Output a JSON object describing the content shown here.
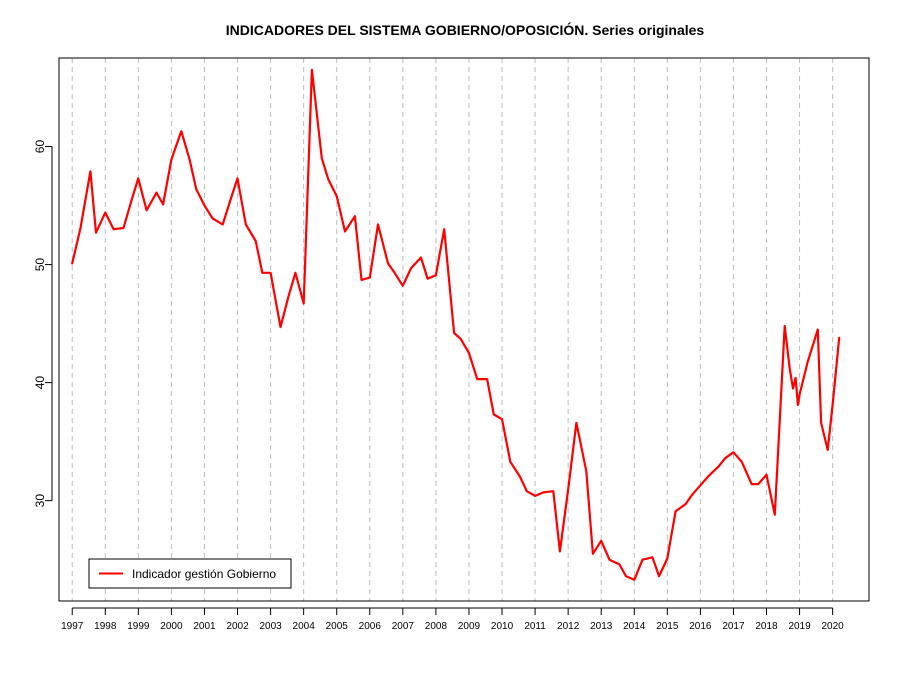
{
  "chart_data": {
    "type": "line",
    "title": "INDICADORES DEL SISTEMA GOBIERNO/OPOSICIÓN. Series originales",
    "xlabel": "",
    "ylabel": "",
    "xlim": [
      1996.6,
      2021.1
    ],
    "ylim": [
      21.5,
      67.5
    ],
    "x_ticks": [
      1997,
      1998,
      1999,
      2000,
      2001,
      2002,
      2003,
      2004,
      2005,
      2006,
      2007,
      2008,
      2009,
      2010,
      2011,
      2012,
      2013,
      2014,
      2015,
      2016,
      2017,
      2018,
      2019,
      2020
    ],
    "y_ticks": [
      30,
      40,
      50,
      60
    ],
    "grid": "vertical dashed gridlines at each year",
    "legend_position": "bottom-left",
    "colors": {
      "series": "#ff0000",
      "grid": "#bdbdbd",
      "axis": "#000000"
    },
    "series": [
      {
        "name": "Indicador gestión Gobierno",
        "color": "#ff0000",
        "x": [
          1997.0,
          1997.25,
          1997.55,
          1997.72,
          1998.0,
          1998.25,
          1998.55,
          1998.8,
          1999.0,
          1999.25,
          1999.55,
          1999.75,
          2000.0,
          2000.3,
          2000.55,
          2000.75,
          2001.0,
          2001.25,
          2001.55,
          2001.8,
          2002.0,
          2002.25,
          2002.55,
          2002.75,
          2003.0,
          2003.3,
          2003.55,
          2003.75,
          2004.0,
          2004.25,
          2004.55,
          2004.75,
          2005.0,
          2005.25,
          2005.55,
          2005.75,
          2006.0,
          2006.25,
          2006.55,
          2006.75,
          2007.0,
          2007.25,
          2007.55,
          2007.75,
          2008.0,
          2008.25,
          2008.55,
          2008.75,
          2009.0,
          2009.25,
          2009.55,
          2009.75,
          2010.0,
          2010.25,
          2010.55,
          2010.75,
          2011.0,
          2011.25,
          2011.55,
          2011.75,
          2012.0,
          2012.25,
          2012.55,
          2012.75,
          2013.0,
          2013.25,
          2013.55,
          2013.75,
          2014.0,
          2014.25,
          2014.55,
          2014.75,
          2015.0,
          2015.25,
          2015.55,
          2015.75,
          2016.0,
          2016.25,
          2016.55,
          2016.75,
          2017.0,
          2017.25,
          2017.55,
          2017.75,
          2018.0,
          2018.25,
          2018.55,
          2018.7,
          2018.8,
          2018.88,
          2018.95,
          2019.0,
          2019.25,
          2019.55,
          2019.65,
          2019.85,
          2020.0,
          2020.2
        ],
        "values": [
          50.1,
          53.1,
          57.9,
          52.7,
          54.4,
          53.0,
          53.1,
          55.5,
          57.3,
          54.6,
          56.1,
          55.1,
          58.9,
          61.3,
          58.9,
          56.4,
          55.0,
          53.9,
          53.4,
          55.6,
          57.3,
          53.4,
          52.0,
          49.3,
          49.3,
          44.7,
          47.4,
          49.3,
          46.7,
          66.5,
          59.0,
          57.2,
          55.8,
          52.8,
          54.1,
          48.7,
          48.9,
          53.4,
          50.1,
          49.3,
          48.2,
          49.7,
          50.6,
          48.8,
          49.1,
          53.0,
          44.2,
          43.7,
          42.5,
          40.3,
          40.3,
          37.3,
          36.9,
          33.3,
          32.0,
          30.8,
          30.4,
          30.7,
          30.8,
          25.7,
          30.9,
          36.6,
          32.5,
          25.5,
          26.6,
          25.0,
          24.6,
          23.6,
          23.3,
          25.0,
          25.2,
          23.6,
          25.1,
          29.1,
          29.7,
          30.5,
          31.3,
          32.1,
          32.9,
          33.6,
          34.1,
          33.3,
          31.4,
          31.4,
          32.2,
          28.8,
          44.8,
          41.2,
          39.5,
          40.4,
          38.1,
          39.0,
          41.8,
          44.5,
          36.6,
          34.3,
          38.1,
          43.8
        ]
      }
    ]
  }
}
